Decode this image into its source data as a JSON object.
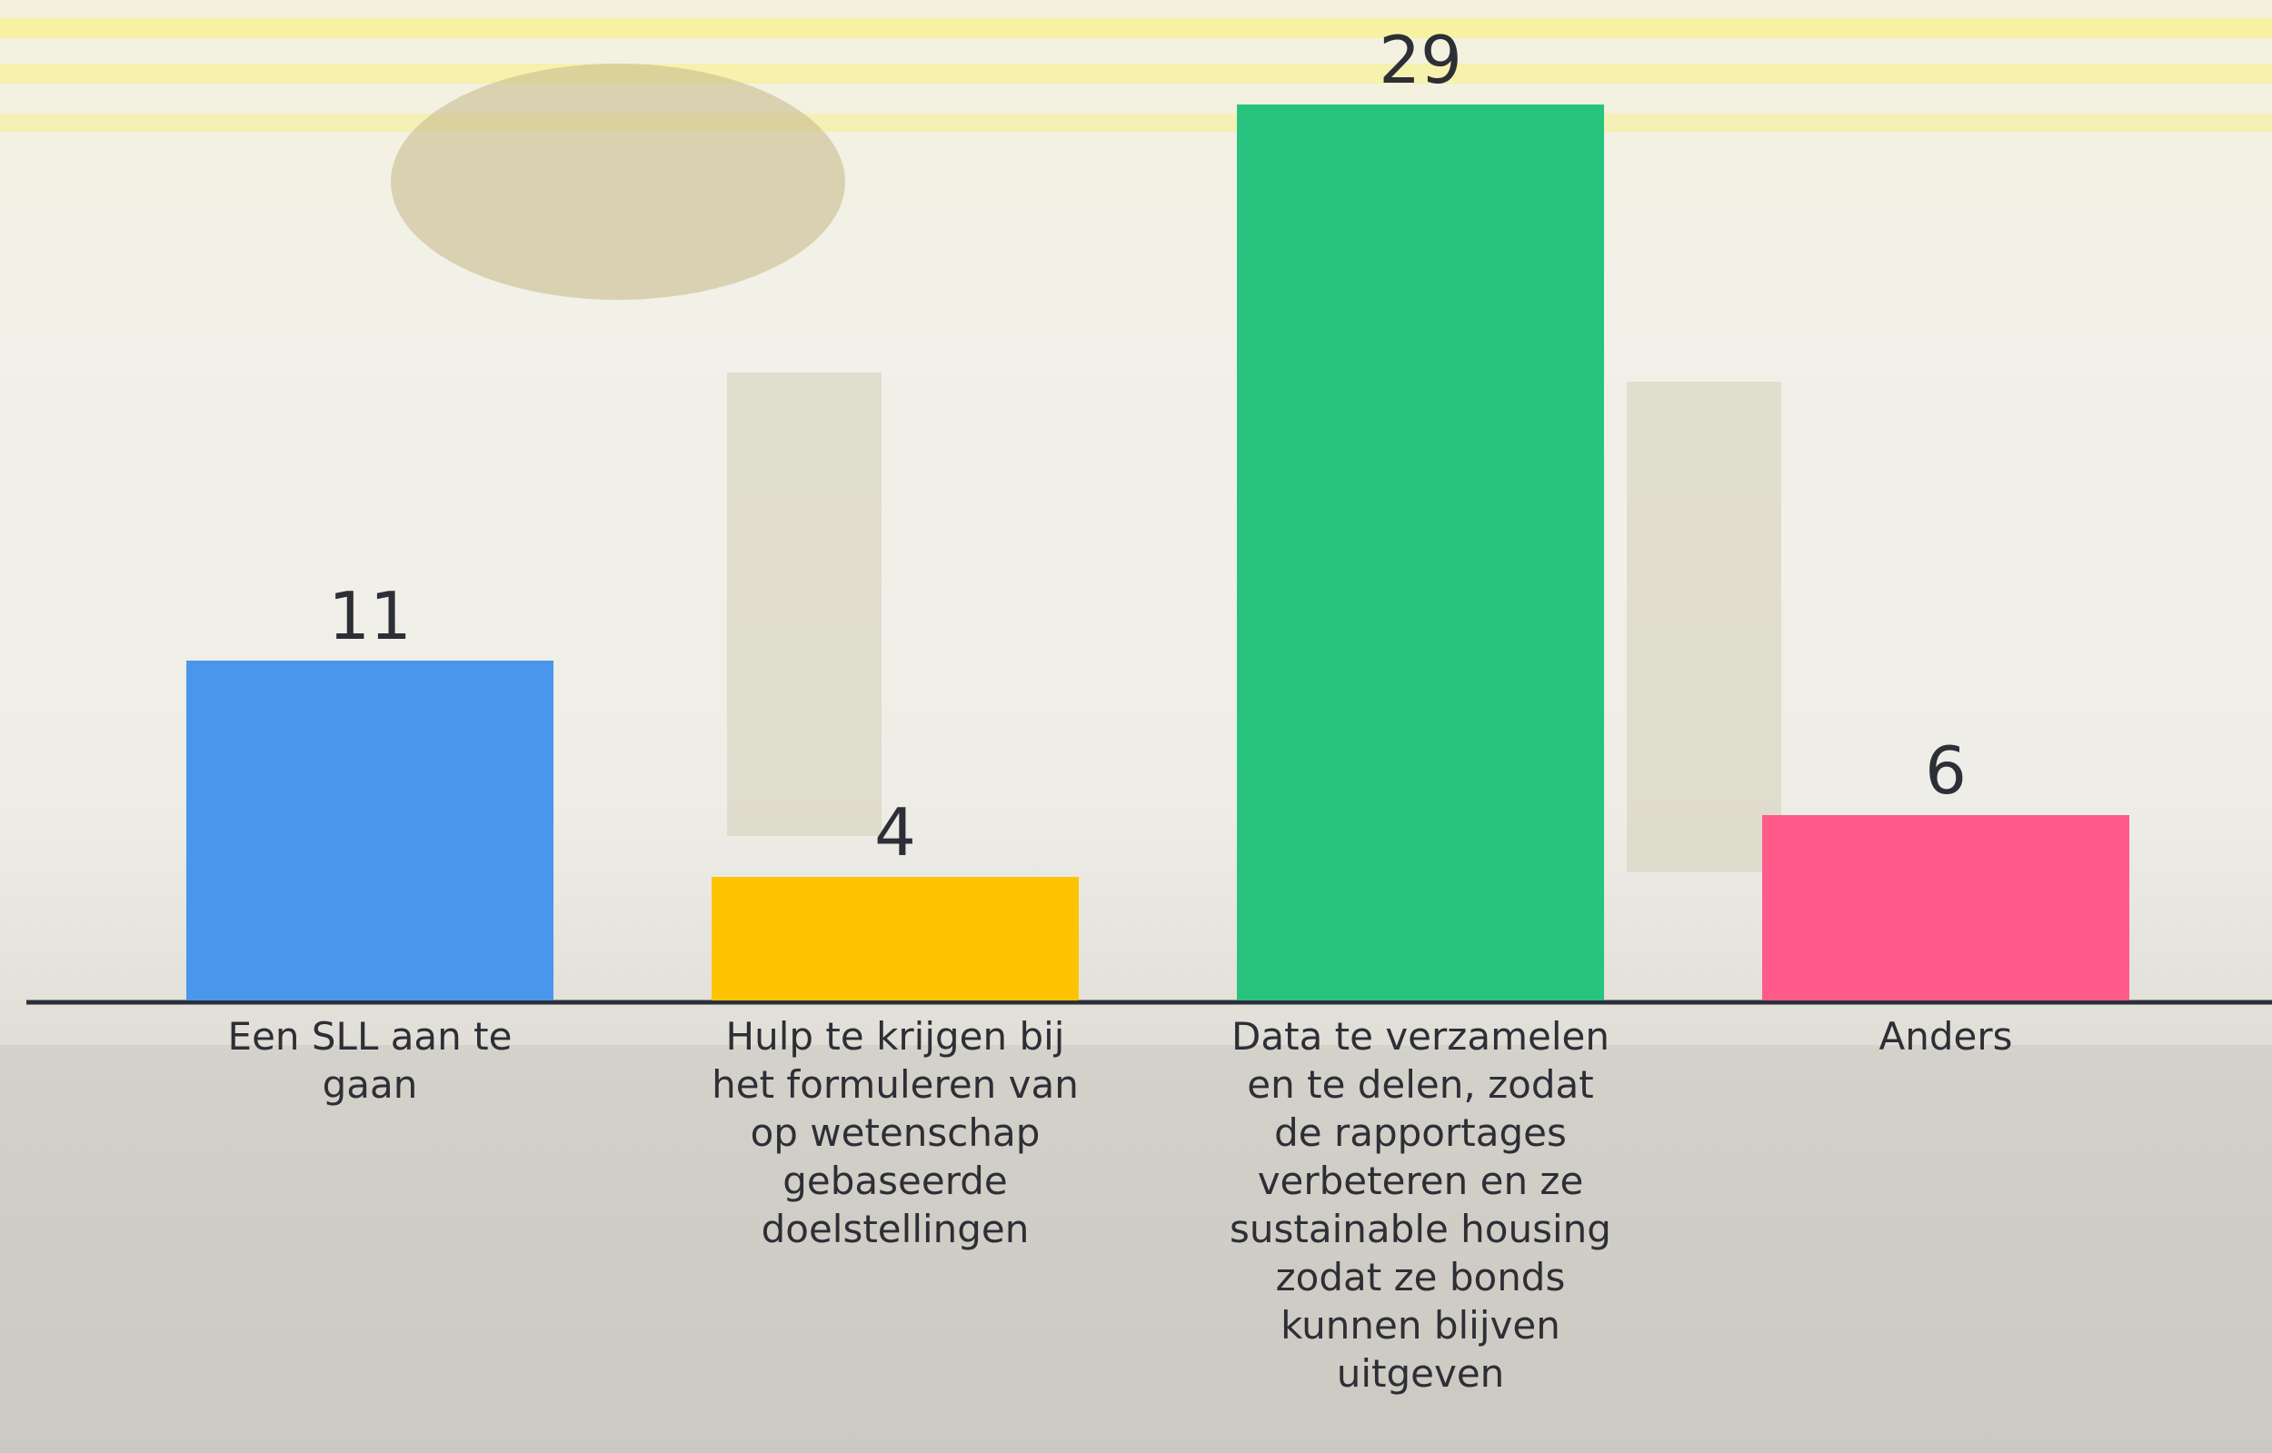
{
  "chart_data": {
    "type": "bar",
    "categories": [
      "Een SLL aan te gaan",
      "Hulp te krijgen bij het formuleren van op wetenschap gebaseerde doelstellingen",
      "Data te verzamelen en te delen, zodat de rapportages verbeteren en ze sustainable housing zodat ze bonds kunnen blijven uitgeven",
      "Anders"
    ],
    "values": [
      11,
      4,
      29,
      6
    ],
    "colors": [
      "#4a96ec",
      "#fdc300",
      "#28c47f",
      "#ff5a8a"
    ]
  }
}
